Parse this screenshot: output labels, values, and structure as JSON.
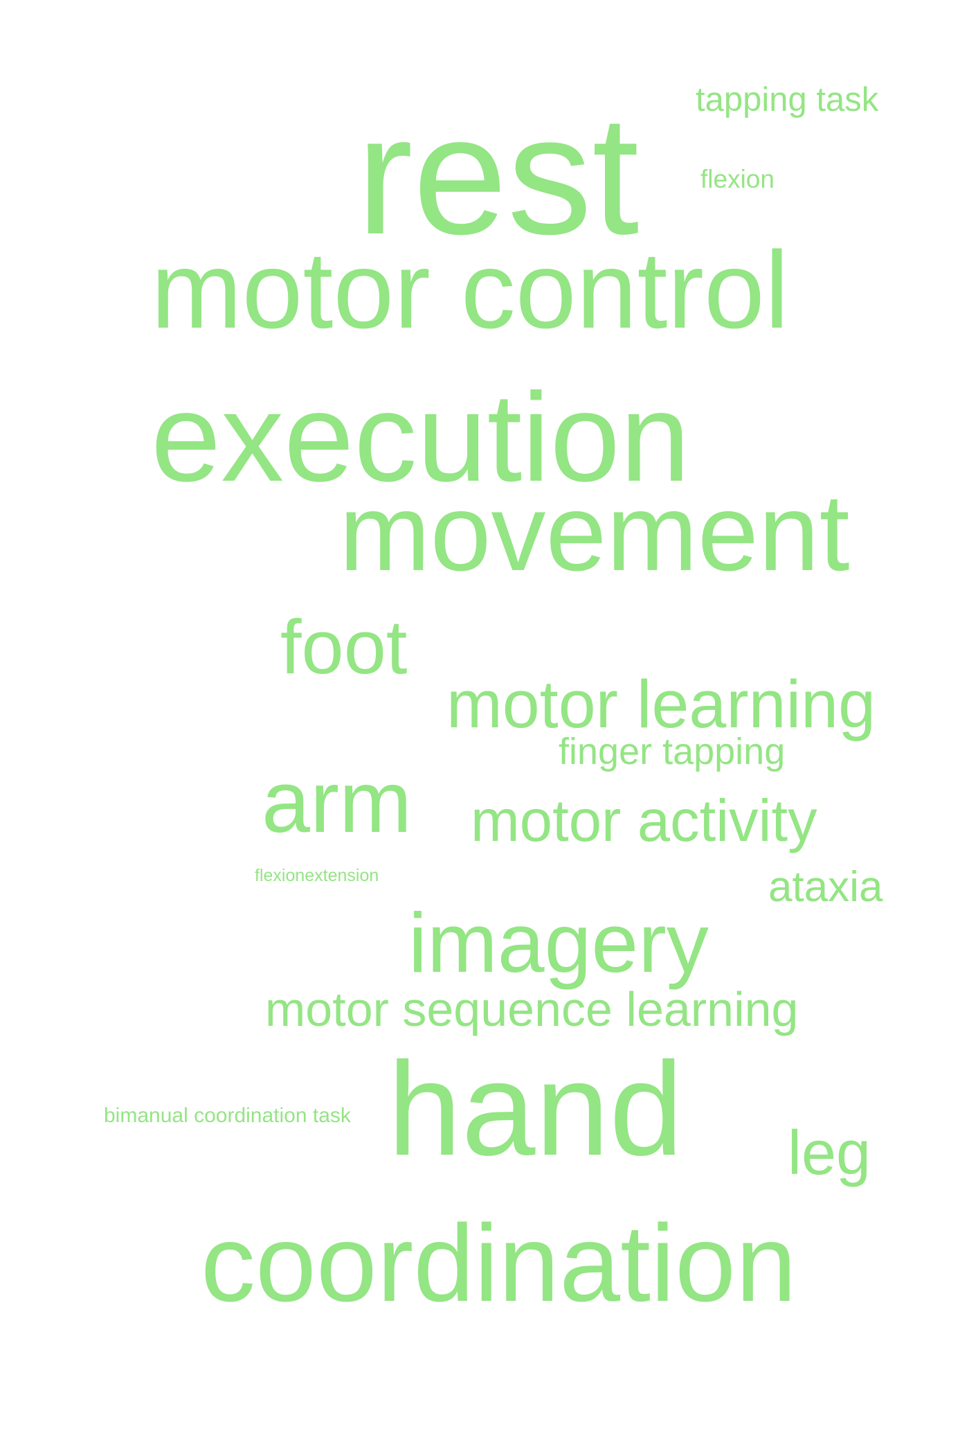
{
  "word_cloud": {
    "color": "#94e584",
    "words": {
      "rest": "rest",
      "tapping_task": "tapping task",
      "flexion": "flexion",
      "motor_control": "motor control",
      "execution": "execution",
      "movement": "movement",
      "foot": "foot",
      "motor_learning": "motor learning",
      "finger_tapping": "finger tapping",
      "arm": "arm",
      "motor_activity": "motor activity",
      "flexionextension": "flexionextension",
      "ataxia": "ataxia",
      "imagery": "imagery",
      "motor_sequence_learning": "motor sequence learning",
      "bimanual_coordination_task": "bimanual coordination task",
      "hand": "hand",
      "leg": "leg",
      "coordination": "coordination"
    }
  }
}
